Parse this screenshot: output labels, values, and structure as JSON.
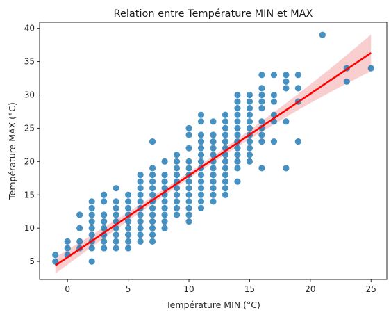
{
  "chart_data": {
    "type": "scatter",
    "title": "Relation entre Température MIN et MAX",
    "xlabel": "Température MIN (°C)",
    "ylabel": "Température MAX (°C)",
    "xlim": [
      -2.3,
      26.3
    ],
    "ylim": [
      2.3,
      40.9
    ],
    "xticks": [
      0,
      5,
      10,
      15,
      20,
      25
    ],
    "yticks": [
      5,
      10,
      15,
      20,
      25,
      30,
      35,
      40
    ],
    "grid": false,
    "point_color": "#1f77b4",
    "fit_color": "#ff0000",
    "band_color": "#f4a6a6",
    "regression": {
      "x": [
        -1,
        25
      ],
      "y": [
        4.4,
        36.3
      ],
      "ci_low": [
        3.6,
        34.9
      ],
      "ci_high": [
        5.2,
        37.6
      ]
    },
    "points": [
      [
        -1,
        5
      ],
      [
        -1,
        6
      ],
      [
        0,
        6
      ],
      [
        0,
        7
      ],
      [
        0,
        8
      ],
      [
        1,
        7
      ],
      [
        1,
        8
      ],
      [
        1,
        10
      ],
      [
        1,
        12
      ],
      [
        2,
        5
      ],
      [
        2,
        7
      ],
      [
        2,
        8
      ],
      [
        2,
        9
      ],
      [
        2,
        10
      ],
      [
        2,
        11
      ],
      [
        2,
        12
      ],
      [
        2,
        13
      ],
      [
        2,
        14
      ],
      [
        3,
        7
      ],
      [
        3,
        8
      ],
      [
        3,
        9
      ],
      [
        3,
        10
      ],
      [
        3,
        11
      ],
      [
        3,
        12
      ],
      [
        3,
        14
      ],
      [
        3,
        15
      ],
      [
        4,
        7
      ],
      [
        4,
        8
      ],
      [
        4,
        9
      ],
      [
        4,
        10
      ],
      [
        4,
        11
      ],
      [
        4,
        12
      ],
      [
        4,
        13
      ],
      [
        4,
        14
      ],
      [
        4,
        16
      ],
      [
        5,
        7
      ],
      [
        5,
        8
      ],
      [
        5,
        9
      ],
      [
        5,
        10
      ],
      [
        5,
        11
      ],
      [
        5,
        12
      ],
      [
        5,
        13
      ],
      [
        5,
        14
      ],
      [
        5,
        15
      ],
      [
        6,
        8
      ],
      [
        6,
        9
      ],
      [
        6,
        10
      ],
      [
        6,
        11
      ],
      [
        6,
        12
      ],
      [
        6,
        13
      ],
      [
        6,
        14
      ],
      [
        6,
        15
      ],
      [
        6,
        16
      ],
      [
        6,
        17
      ],
      [
        6,
        18
      ],
      [
        7,
        8
      ],
      [
        7,
        9
      ],
      [
        7,
        10
      ],
      [
        7,
        11
      ],
      [
        7,
        12
      ],
      [
        7,
        13
      ],
      [
        7,
        14
      ],
      [
        7,
        15
      ],
      [
        7,
        16
      ],
      [
        7,
        17
      ],
      [
        7,
        18
      ],
      [
        7,
        19
      ],
      [
        7,
        23
      ],
      [
        8,
        10
      ],
      [
        8,
        11
      ],
      [
        8,
        12
      ],
      [
        8,
        13
      ],
      [
        8,
        14
      ],
      [
        8,
        15
      ],
      [
        8,
        16
      ],
      [
        8,
        17
      ],
      [
        8,
        18
      ],
      [
        8,
        20
      ],
      [
        9,
        12
      ],
      [
        9,
        13
      ],
      [
        9,
        14
      ],
      [
        9,
        15
      ],
      [
        9,
        16
      ],
      [
        9,
        17
      ],
      [
        9,
        18
      ],
      [
        9,
        19
      ],
      [
        9,
        20
      ],
      [
        9,
        21
      ],
      [
        10,
        11
      ],
      [
        10,
        12
      ],
      [
        10,
        13
      ],
      [
        10,
        14
      ],
      [
        10,
        15
      ],
      [
        10,
        16
      ],
      [
        10,
        17
      ],
      [
        10,
        18
      ],
      [
        10,
        19
      ],
      [
        10,
        20
      ],
      [
        10,
        22
      ],
      [
        10,
        24
      ],
      [
        10,
        25
      ],
      [
        11,
        13
      ],
      [
        11,
        14
      ],
      [
        11,
        15
      ],
      [
        11,
        16
      ],
      [
        11,
        17
      ],
      [
        11,
        18
      ],
      [
        11,
        19
      ],
      [
        11,
        20
      ],
      [
        11,
        21
      ],
      [
        11,
        22
      ],
      [
        11,
        23
      ],
      [
        11,
        24
      ],
      [
        11,
        26
      ],
      [
        11,
        27
      ],
      [
        12,
        14
      ],
      [
        12,
        15
      ],
      [
        12,
        16
      ],
      [
        12,
        17
      ],
      [
        12,
        18
      ],
      [
        12,
        19
      ],
      [
        12,
        20
      ],
      [
        12,
        21
      ],
      [
        12,
        22
      ],
      [
        12,
        23
      ],
      [
        12,
        24
      ],
      [
        12,
        26
      ],
      [
        13,
        15
      ],
      [
        13,
        16
      ],
      [
        13,
        17
      ],
      [
        13,
        18
      ],
      [
        13,
        19
      ],
      [
        13,
        20
      ],
      [
        13,
        21
      ],
      [
        13,
        22
      ],
      [
        13,
        23
      ],
      [
        13,
        24
      ],
      [
        13,
        25
      ],
      [
        13,
        26
      ],
      [
        13,
        27
      ],
      [
        14,
        17
      ],
      [
        14,
        19
      ],
      [
        14,
        20
      ],
      [
        14,
        21
      ],
      [
        14,
        22
      ],
      [
        14,
        23
      ],
      [
        14,
        24
      ],
      [
        14,
        25
      ],
      [
        14,
        26
      ],
      [
        14,
        27
      ],
      [
        14,
        28
      ],
      [
        14,
        29
      ],
      [
        14,
        30
      ],
      [
        15,
        20
      ],
      [
        15,
        21
      ],
      [
        15,
        22
      ],
      [
        15,
        23
      ],
      [
        15,
        24
      ],
      [
        15,
        25
      ],
      [
        15,
        26
      ],
      [
        15,
        27
      ],
      [
        15,
        28
      ],
      [
        15,
        29
      ],
      [
        15,
        30
      ],
      [
        16,
        19
      ],
      [
        16,
        23
      ],
      [
        16,
        24
      ],
      [
        16,
        25
      ],
      [
        16,
        26
      ],
      [
        16,
        28
      ],
      [
        16,
        29
      ],
      [
        16,
        30
      ],
      [
        16,
        31
      ],
      [
        16,
        33
      ],
      [
        17,
        23
      ],
      [
        17,
        26
      ],
      [
        17,
        27
      ],
      [
        17,
        29
      ],
      [
        17,
        30
      ],
      [
        17,
        33
      ],
      [
        18,
        19
      ],
      [
        18,
        26
      ],
      [
        18,
        31
      ],
      [
        18,
        32
      ],
      [
        18,
        33
      ],
      [
        19,
        23
      ],
      [
        19,
        29
      ],
      [
        19,
        31
      ],
      [
        19,
        33
      ],
      [
        21,
        39
      ],
      [
        23,
        32
      ],
      [
        23,
        34
      ],
      [
        25,
        34
      ]
    ]
  }
}
